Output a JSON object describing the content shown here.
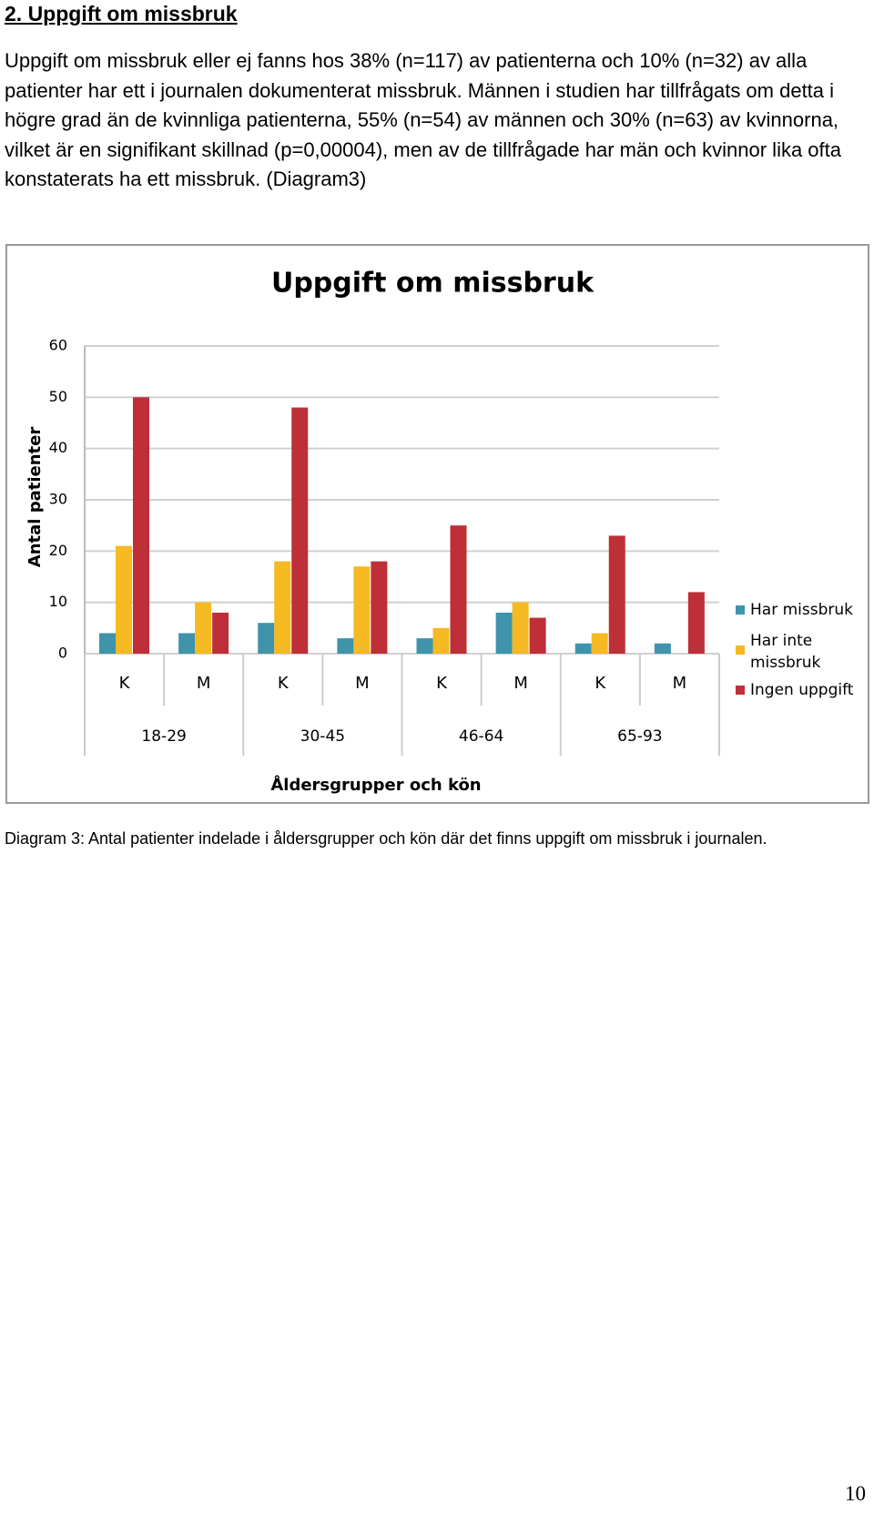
{
  "heading": "2. Uppgift om missbruk",
  "paragraph": "Uppgift om missbruk eller ej fanns hos 38% (n=117) av patienterna och 10% (n=32) av alla patienter har ett i journalen dokumenterat missbruk. Männen i studien har tillfrågats om detta i högre grad än de kvinnliga patienterna, 55% (n=54) av männen och 30% (n=63) av kvinnorna, vilket är en signifikant skillnad (p=0,00004), men av de tillfrågade har män och kvinnor lika ofta konstaterats ha ett missbruk. (Diagram3)",
  "chart_data": {
    "type": "bar",
    "title": "Uppgift om missbruk",
    "y_label": "Antal patienter",
    "x_label": "Åldersgrupper och kön",
    "categories": [
      "K",
      "M",
      "K",
      "M",
      "K",
      "M",
      "K",
      "M"
    ],
    "groups": [
      "18-29",
      "30-45",
      "46-64",
      "65-93"
    ],
    "series": [
      {
        "name": "Har missbruk",
        "color": "#3f93ab",
        "values": [
          4,
          4,
          6,
          3,
          3,
          8,
          2,
          2
        ]
      },
      {
        "name": "Har inte missbruk",
        "color": "#f5b921",
        "values": [
          21,
          10,
          18,
          17,
          5,
          10,
          4,
          0
        ]
      },
      {
        "name": "Ingen uppgift",
        "color": "#be2f38",
        "values": [
          50,
          8,
          48,
          18,
          25,
          7,
          23,
          12
        ]
      }
    ],
    "ylim": [
      0,
      60
    ],
    "yticks": [
      0,
      10,
      20,
      30,
      40,
      50,
      60
    ],
    "grid": true,
    "legend": "right"
  },
  "caption": "Diagram 3: Antal patienter indelade i åldersgrupper och kön där det finns uppgift om missbruk i journalen.",
  "page_number": "10"
}
